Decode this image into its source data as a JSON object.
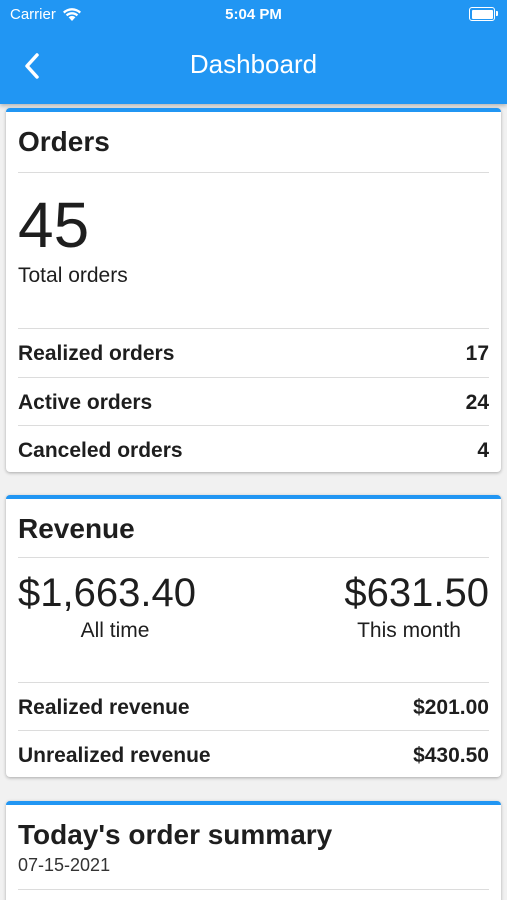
{
  "status_bar": {
    "carrier": "Carrier",
    "time": "5:04 PM",
    "icons": [
      "wifi-icon",
      "battery-icon"
    ]
  },
  "header": {
    "title": "Dashboard",
    "back_icon": "chevron-left-icon",
    "color": "#2196f3"
  },
  "orders": {
    "title": "Orders",
    "total": "45",
    "total_label": "Total orders",
    "rows": [
      {
        "label": "Realized orders",
        "value": "17"
      },
      {
        "label": "Active orders",
        "value": "24"
      },
      {
        "label": "Canceled orders",
        "value": "4"
      }
    ]
  },
  "revenue": {
    "title": "Revenue",
    "all_time_amount": "$1,663.40",
    "all_time_label": "All time",
    "month_amount": "$631.50",
    "month_label": "This month",
    "rows": [
      {
        "label": "Realized revenue",
        "value": "$201.00"
      },
      {
        "label": "Unrealized revenue",
        "value": "$430.50"
      }
    ]
  },
  "summary": {
    "title": "Today's order summary",
    "date": "07-15-2021"
  }
}
